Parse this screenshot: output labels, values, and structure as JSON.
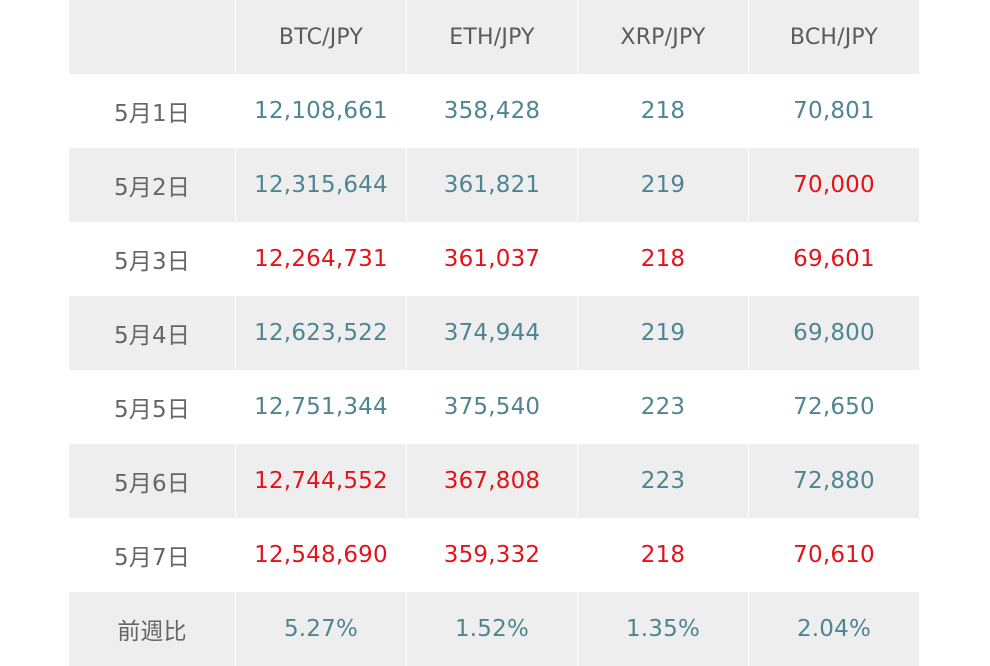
{
  "colors": {
    "up": "#4f8593",
    "down": "#e5121a",
    "label": "#666666",
    "shade": "#eeeeee"
  },
  "table": {
    "header": {
      "corner": "",
      "columns": [
        "BTC/JPY",
        "ETH/JPY",
        "XRP/JPY",
        "BCH/JPY"
      ]
    },
    "rows": [
      {
        "label": "5月1日",
        "values": [
          "12,108,661",
          "358,428",
          "218",
          "70,801"
        ],
        "trend": [
          "up",
          "up",
          "up",
          "up"
        ]
      },
      {
        "label": "5月2日",
        "values": [
          "12,315,644",
          "361,821",
          "219",
          "70,000"
        ],
        "trend": [
          "up",
          "up",
          "up",
          "down"
        ]
      },
      {
        "label": "5月3日",
        "values": [
          "12,264,731",
          "361,037",
          "218",
          "69,601"
        ],
        "trend": [
          "down",
          "down",
          "down",
          "down"
        ]
      },
      {
        "label": "5月4日",
        "values": [
          "12,623,522",
          "374,944",
          "219",
          "69,800"
        ],
        "trend": [
          "up",
          "up",
          "up",
          "up"
        ]
      },
      {
        "label": "5月5日",
        "values": [
          "12,751,344",
          "375,540",
          "223",
          "72,650"
        ],
        "trend": [
          "up",
          "up",
          "up",
          "up"
        ]
      },
      {
        "label": "5月6日",
        "values": [
          "12,744,552",
          "367,808",
          "223",
          "72,880"
        ],
        "trend": [
          "down",
          "down",
          "up",
          "up"
        ]
      },
      {
        "label": "5月7日",
        "values": [
          "12,548,690",
          "359,332",
          "218",
          "70,610"
        ],
        "trend": [
          "down",
          "down",
          "down",
          "down"
        ]
      }
    ],
    "summary": {
      "label": "前週比",
      "values": [
        "5.27%",
        "1.52%",
        "1.35%",
        "2.04%"
      ]
    }
  }
}
